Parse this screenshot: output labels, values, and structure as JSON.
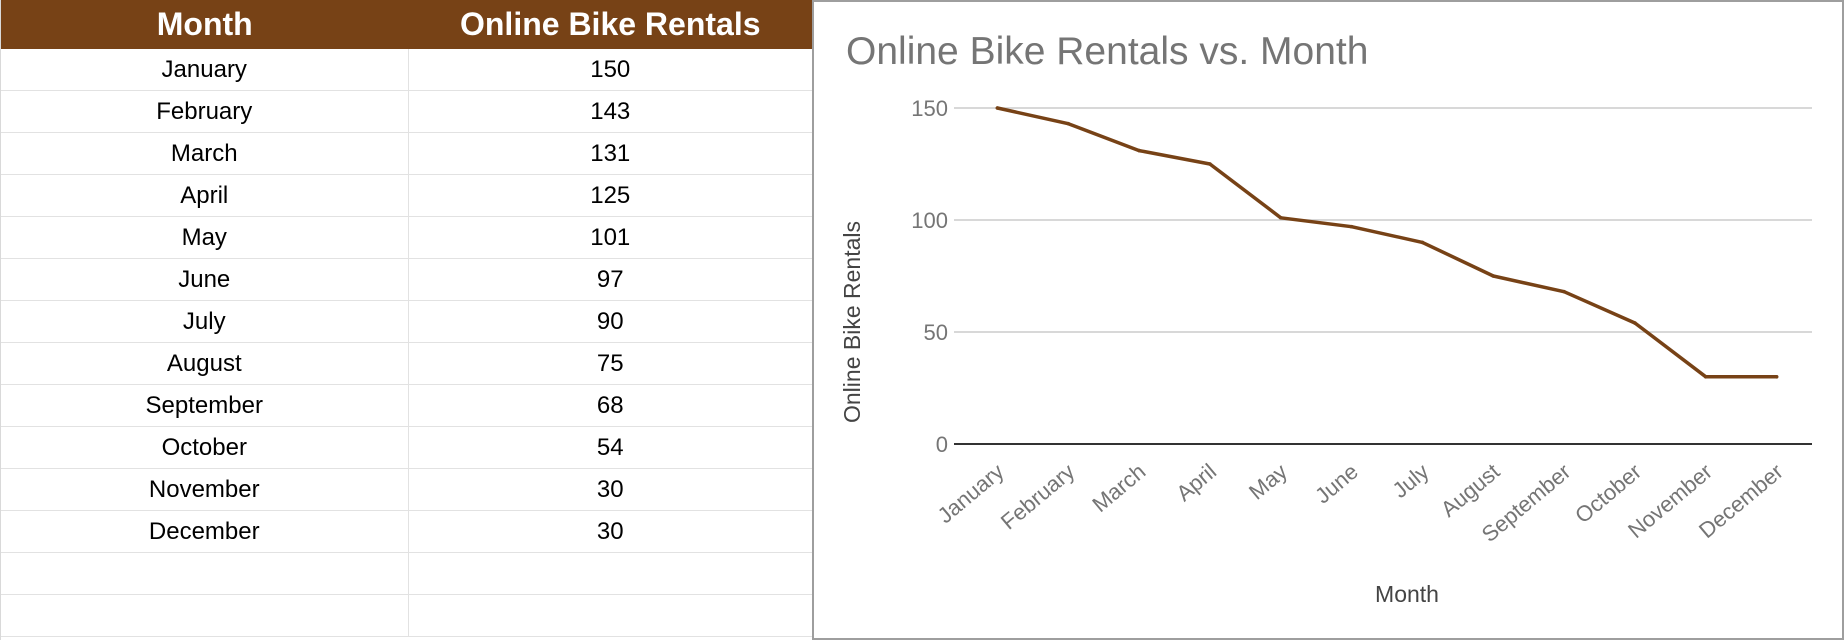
{
  "table": {
    "headers": [
      "Month",
      "Online Bike Rentals"
    ],
    "rows": [
      [
        "January",
        "150"
      ],
      [
        "February",
        "143"
      ],
      [
        "March",
        "131"
      ],
      [
        "April",
        "125"
      ],
      [
        "May",
        "101"
      ],
      [
        "June",
        "97"
      ],
      [
        "July",
        "90"
      ],
      [
        "August",
        "75"
      ],
      [
        "September",
        "68"
      ],
      [
        "October",
        "54"
      ],
      [
        "November",
        "30"
      ],
      [
        "December",
        "30"
      ],
      [
        "",
        ""
      ],
      [
        "",
        ""
      ]
    ]
  },
  "colors": {
    "header_bg": "#774216",
    "line": "#774216",
    "grid": "#cccccc",
    "axis": "#333333"
  },
  "chart_data": {
    "type": "line",
    "title": "Online Bike Rentals vs. Month",
    "xlabel": "Month",
    "ylabel": "Online Bike Rentals",
    "categories": [
      "January",
      "February",
      "March",
      "April",
      "May",
      "June",
      "July",
      "August",
      "September",
      "October",
      "November",
      "December"
    ],
    "values": [
      150,
      143,
      131,
      125,
      101,
      97,
      90,
      75,
      68,
      54,
      30,
      30
    ],
    "ylim": [
      0,
      150
    ],
    "yticks": [
      "0",
      "50",
      "100",
      "150"
    ],
    "grid": true,
    "legend": "none"
  }
}
